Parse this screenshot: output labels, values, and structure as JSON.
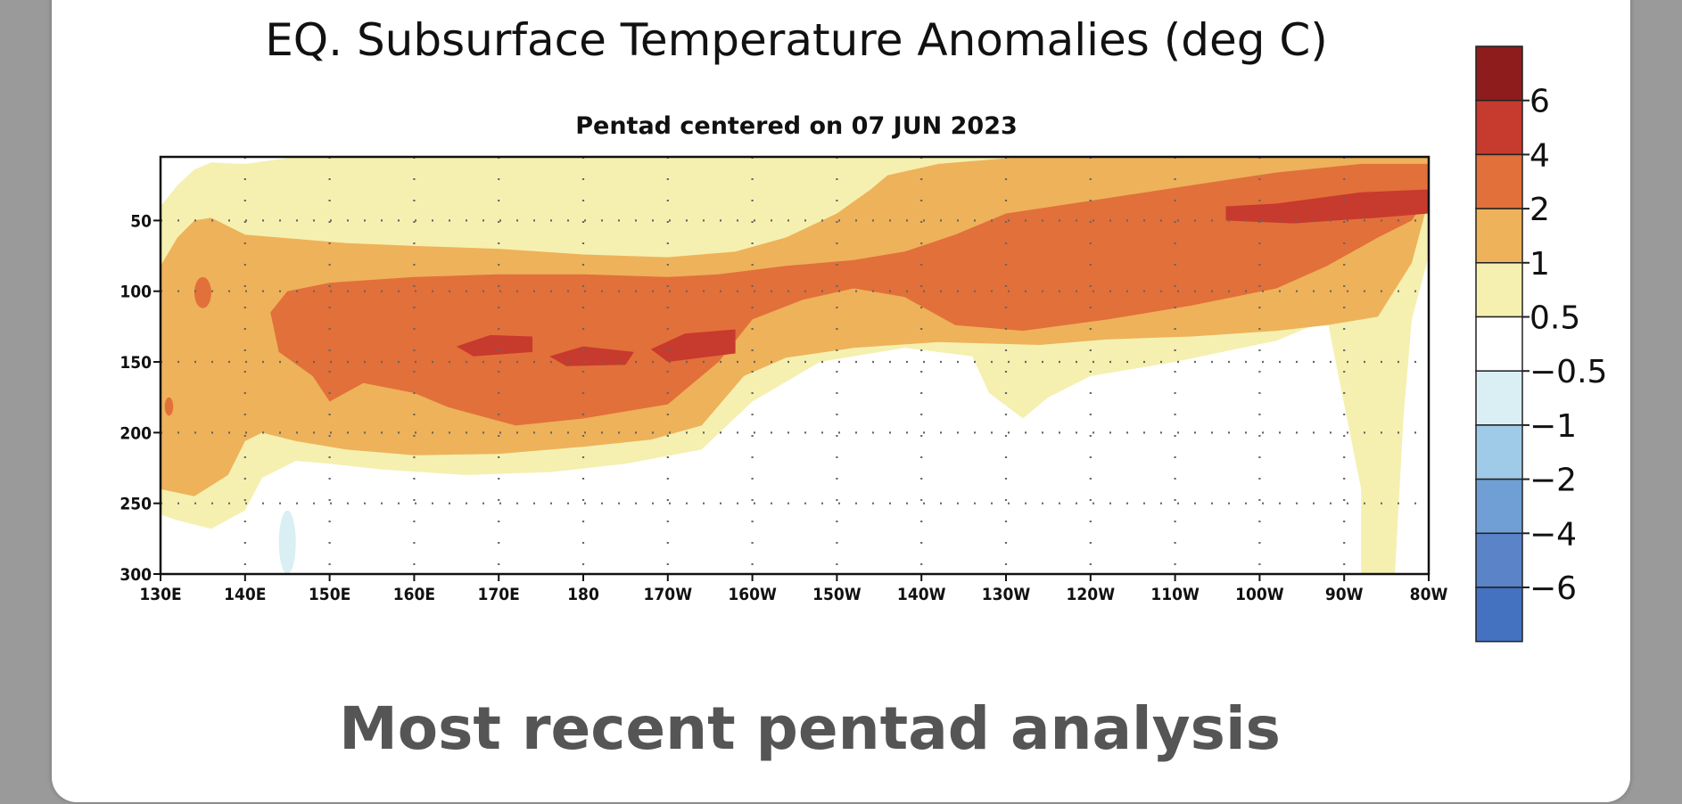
{
  "chart_data": {
    "type": "heatmap",
    "title": "EQ. Subsurface Temperature Anomalies (deg C)",
    "subtitle": "Pentad centered on 07 JUN 2023",
    "caption": "Most recent pentad analysis",
    "x_axis": {
      "unit": "longitude (degrees east, 0-360)",
      "range": [
        130,
        280
      ],
      "ticks": [
        130,
        140,
        150,
        160,
        170,
        180,
        190,
        200,
        210,
        220,
        230,
        240,
        250,
        260,
        270,
        280
      ],
      "tick_labels": [
        "130E",
        "140E",
        "150E",
        "160E",
        "170E",
        "180",
        "170W",
        "160W",
        "150W",
        "140W",
        "130W",
        "120W",
        "110W",
        "100W",
        "90W",
        "80W"
      ]
    },
    "y_axis": {
      "unit": "depth (m)",
      "range": [
        5,
        300
      ],
      "inverted": true,
      "ticks": [
        50,
        100,
        150,
        200,
        250,
        300
      ],
      "tick_labels": [
        "50",
        "100",
        "150",
        "200",
        "250",
        "300"
      ]
    },
    "grid": "dotted",
    "colorbar": {
      "placement": "right",
      "labels": [
        "6",
        "4",
        "2",
        "1",
        "0.5",
        "−0.5",
        "−1",
        "−2",
        "−4",
        "−6"
      ],
      "colors": [
        "#8e1c1c",
        "#c73a2e",
        "#e2703a",
        "#eeb25a",
        "#f5f0b0",
        "#ffffff",
        "#d9eff3",
        "#9fcbe8",
        "#6f9fd4",
        "#5a83c8",
        "#4472c0"
      ]
    },
    "levels": {
      "ge_0_5": [
        [
          130,
          40
        ],
        [
          132,
          25
        ],
        [
          134,
          14
        ],
        [
          136,
          9
        ],
        [
          140,
          10
        ],
        [
          146,
          5
        ],
        [
          200,
          5
        ],
        [
          280,
          5
        ],
        [
          280,
          75
        ],
        [
          278,
          120
        ],
        [
          277,
          190
        ],
        [
          276,
          300
        ],
        [
          272,
          300
        ],
        [
          272,
          240
        ],
        [
          270,
          180
        ],
        [
          268,
          120
        ],
        [
          262,
          135
        ],
        [
          250,
          150
        ],
        [
          240,
          160
        ],
        [
          235,
          175
        ],
        [
          232,
          190
        ],
        [
          228,
          172
        ],
        [
          226,
          146
        ],
        [
          218,
          140
        ],
        [
          208,
          150
        ],
        [
          200,
          178
        ],
        [
          194,
          212
        ],
        [
          185,
          222
        ],
        [
          176,
          228
        ],
        [
          166,
          230
        ],
        [
          156,
          226
        ],
        [
          150,
          222
        ],
        [
          146,
          220
        ],
        [
          142,
          232
        ],
        [
          140,
          255
        ],
        [
          136,
          268
        ],
        [
          132,
          262
        ],
        [
          130,
          258
        ],
        [
          130,
          230
        ]
      ],
      "ge_1": [
        [
          130,
          82
        ],
        [
          132,
          62
        ],
        [
          134,
          50
        ],
        [
          136,
          48
        ],
        [
          140,
          60
        ],
        [
          146,
          63
        ],
        [
          152,
          66
        ],
        [
          160,
          68
        ],
        [
          170,
          70
        ],
        [
          180,
          74
        ],
        [
          190,
          76
        ],
        [
          198,
          72
        ],
        [
          204,
          62
        ],
        [
          210,
          45
        ],
        [
          214,
          28
        ],
        [
          216,
          18
        ],
        [
          222,
          10
        ],
        [
          232,
          5
        ],
        [
          280,
          5
        ],
        [
          280,
          35
        ],
        [
          278,
          80
        ],
        [
          274,
          118
        ],
        [
          268,
          124
        ],
        [
          262,
          128
        ],
        [
          252,
          132
        ],
        [
          242,
          134
        ],
        [
          234,
          138
        ],
        [
          222,
          136
        ],
        [
          212,
          140
        ],
        [
          204,
          147
        ],
        [
          199,
          160
        ],
        [
          194,
          195
        ],
        [
          188,
          205
        ],
        [
          180,
          210
        ],
        [
          170,
          215
        ],
        [
          160,
          216
        ],
        [
          152,
          212
        ],
        [
          146,
          206
        ],
        [
          142,
          200
        ],
        [
          140,
          206
        ],
        [
          138,
          230
        ],
        [
          134,
          245
        ],
        [
          130,
          240
        ],
        [
          130,
          180
        ]
      ],
      "ge_2": [
        [
          143,
          115
        ],
        [
          145,
          100
        ],
        [
          150,
          94
        ],
        [
          160,
          90
        ],
        [
          170,
          88
        ],
        [
          180,
          88
        ],
        [
          190,
          90
        ],
        [
          196,
          88
        ],
        [
          204,
          82
        ],
        [
          212,
          78
        ],
        [
          218,
          72
        ],
        [
          224,
          60
        ],
        [
          230,
          45
        ],
        [
          240,
          36
        ],
        [
          252,
          25
        ],
        [
          262,
          16
        ],
        [
          272,
          10
        ],
        [
          280,
          10
        ],
        [
          280,
          32
        ],
        [
          278,
          50
        ],
        [
          274,
          62
        ],
        [
          268,
          82
        ],
        [
          262,
          98
        ],
        [
          252,
          110
        ],
        [
          242,
          120
        ],
        [
          232,
          128
        ],
        [
          224,
          124
        ],
        [
          218,
          104
        ],
        [
          212,
          98
        ],
        [
          206,
          106
        ],
        [
          200,
          120
        ],
        [
          196,
          150
        ],
        [
          190,
          180
        ],
        [
          180,
          190
        ],
        [
          172,
          195
        ],
        [
          164,
          182
        ],
        [
          160,
          172
        ],
        [
          154,
          165
        ],
        [
          150,
          178
        ],
        [
          148,
          160
        ],
        [
          144,
          143
        ]
      ],
      "ge_4": [
        [
          165,
          139
        ],
        [
          169,
          131
        ],
        [
          174,
          132
        ],
        [
          174,
          143
        ],
        [
          167,
          146
        ],
        [
          176,
          146
        ],
        [
          180,
          139
        ],
        [
          186,
          143
        ],
        [
          185,
          152
        ],
        [
          178,
          153
        ],
        [
          188,
          141
        ],
        [
          192,
          130
        ],
        [
          198,
          127
        ],
        [
          198,
          144
        ],
        [
          190,
          150
        ],
        [
          256,
          40
        ],
        [
          262,
          38
        ],
        [
          272,
          30
        ],
        [
          280,
          28
        ],
        [
          280,
          45
        ],
        [
          274,
          48
        ],
        [
          264,
          52
        ],
        [
          256,
          50
        ]
      ]
    },
    "minor_features": [
      {
        "name": "cold spot near 145E at 260-300 m",
        "value": "-0.5",
        "x": [
          144,
          146
        ],
        "y": [
          255,
          300
        ]
      },
      {
        "name": "warm spot near 135E at 100 m",
        "value": "2",
        "x": [
          134,
          136
        ],
        "y": [
          90,
          112
        ]
      },
      {
        "name": "warm spot near 131E at 180 m",
        "value": "2",
        "x": [
          130.5,
          131.5
        ],
        "y": [
          175,
          188
        ]
      }
    ]
  }
}
